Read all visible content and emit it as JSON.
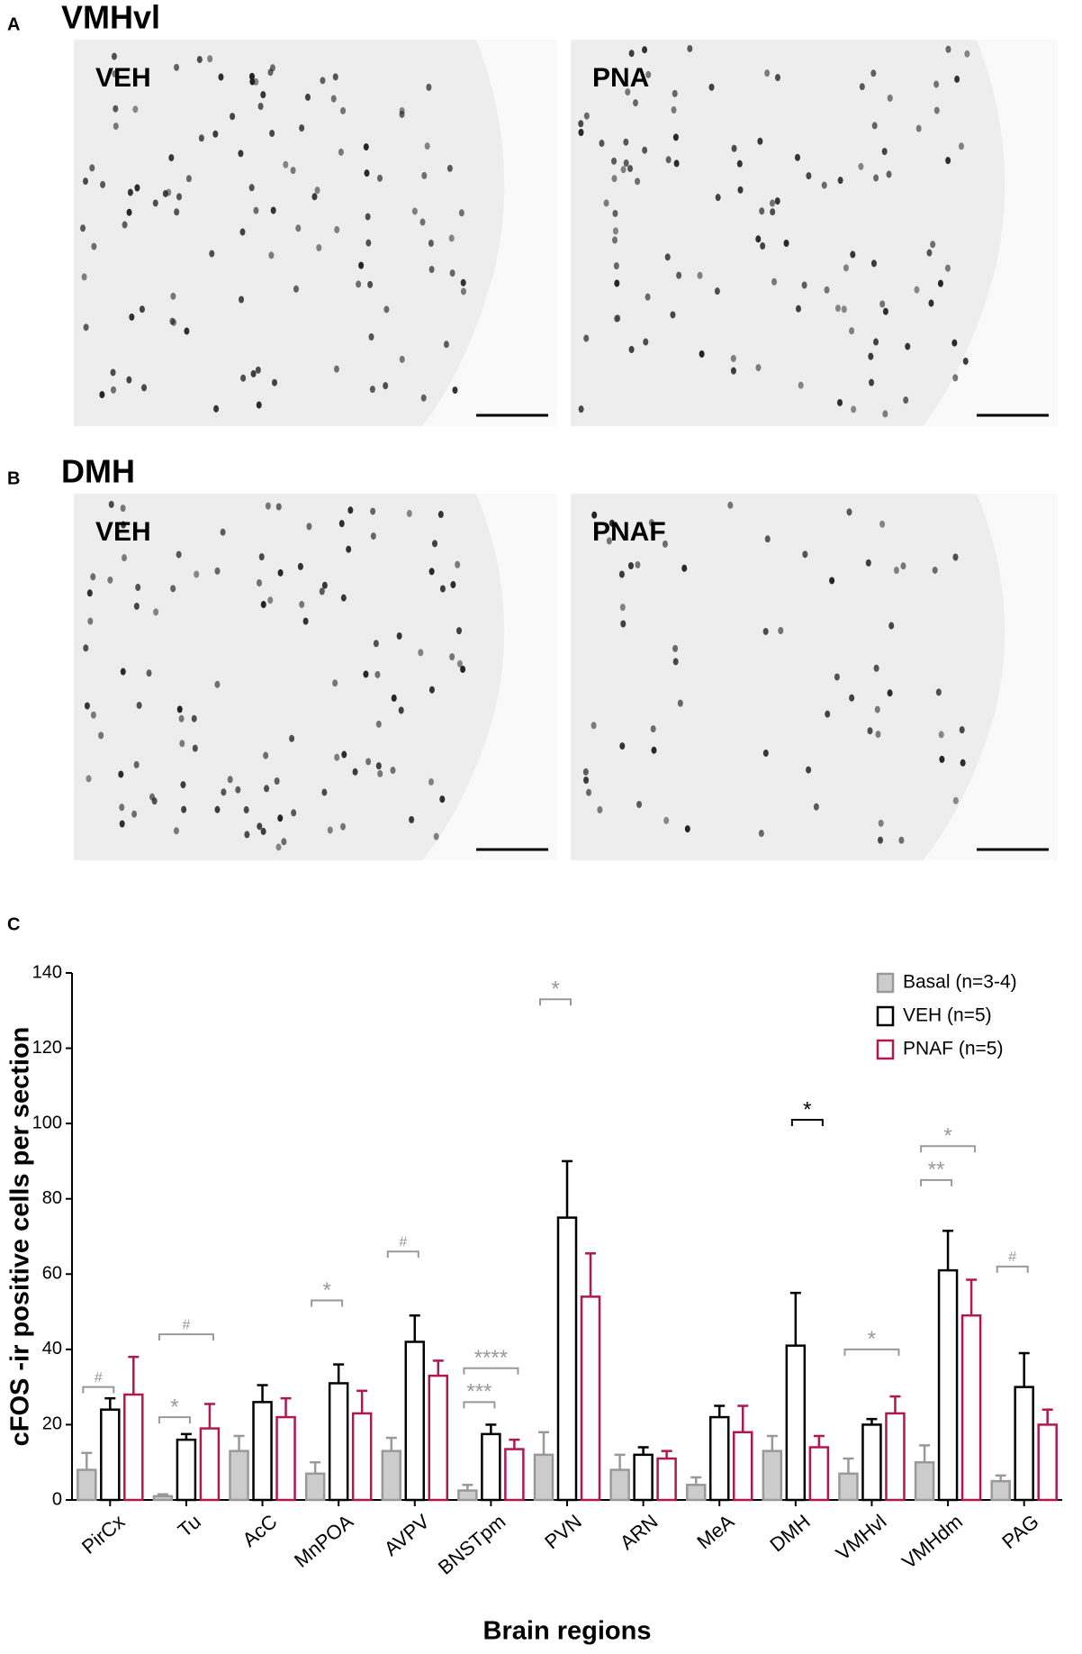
{
  "panels": [
    {
      "letter": "A",
      "title": "VMHvl",
      "images": [
        "VEH",
        "PNA"
      ]
    },
    {
      "letter": "B",
      "title": "DMH",
      "images": [
        "VEH",
        "PNAF"
      ]
    }
  ],
  "panel_c": {
    "letter": "C"
  },
  "chart_data": {
    "type": "bar",
    "y_label": "cFOS -ir positive cells per section",
    "x_label": "Brain regions",
    "categories": [
      "PirCx",
      "Tu",
      "AcC",
      "MnPOA",
      "AVPV",
      "BNSTpm",
      "PVN",
      "ARN",
      "MeA",
      "DMH",
      "VMHvl",
      "VMHdm",
      "PAG"
    ],
    "series": [
      {
        "name": "Basal (n=3-4)",
        "color": "#999999",
        "fill": "#cccccc",
        "values": [
          8,
          1,
          13,
          7,
          13,
          2.5,
          12,
          8,
          4,
          13,
          7,
          10,
          5
        ],
        "errors": [
          4.5,
          0.5,
          4,
          3,
          3.5,
          1.5,
          6,
          4,
          2,
          4,
          4,
          4.5,
          1.5
        ]
      },
      {
        "name": "VEH (n=5)",
        "color": "#000000",
        "fill": "#ffffff",
        "values": [
          24,
          16,
          26,
          31,
          42,
          17.5,
          75,
          12,
          22,
          41,
          20,
          61,
          30
        ],
        "errors": [
          3,
          1.5,
          4.5,
          5,
          7,
          2.5,
          15,
          2,
          3,
          14,
          1.5,
          10.5,
          9
        ]
      },
      {
        "name": "PNAF (n=5)",
        "color": "#b0184f",
        "fill": "#ffffff",
        "values": [
          28,
          19,
          22,
          23,
          33,
          13.5,
          54,
          11,
          18,
          14,
          23,
          49,
          20
        ],
        "errors": [
          10,
          6.5,
          5,
          6,
          4,
          2.5,
          11.5,
          2,
          7,
          3,
          4.5,
          9.5,
          4
        ]
      }
    ],
    "ylim": [
      0,
      140
    ],
    "yticks": [
      0,
      20,
      40,
      60,
      80,
      100,
      120,
      140
    ],
    "legend": "top-right",
    "annotations": [
      {
        "text": "#",
        "category": "PirCx",
        "from": "Basal (n=3-4)",
        "to": "VEH (n=5)",
        "y": 30,
        "color": "#999999"
      },
      {
        "text": "*",
        "category": "Tu",
        "from": "Basal (n=3-4)",
        "to": "VEH (n=5)",
        "y": 22,
        "color": "#999999"
      },
      {
        "text": "#",
        "category": "Tu",
        "from": "Basal (n=3-4)",
        "to": "PNAF (n=5)",
        "y": 44,
        "color": "#999999"
      },
      {
        "text": "*",
        "category": "MnPOA",
        "from": "Basal (n=3-4)",
        "to": "VEH (n=5)",
        "y": 53,
        "color": "#999999"
      },
      {
        "text": "#",
        "category": "AVPV",
        "from": "Basal (n=3-4)",
        "to": "VEH (n=5)",
        "y": 66,
        "color": "#999999"
      },
      {
        "text": "***",
        "category": "BNSTpm",
        "from": "Basal (n=3-4)",
        "to": "VEH (n=5)",
        "y": 26,
        "color": "#999999"
      },
      {
        "text": "****",
        "category": "BNSTpm",
        "from": "Basal (n=3-4)",
        "to": "PNAF (n=5)",
        "y": 35,
        "color": "#999999"
      },
      {
        "text": "*",
        "category": "PVN",
        "from": "Basal (n=3-4)",
        "to": "VEH (n=5)",
        "y": 133,
        "color": "#999999"
      },
      {
        "text": "*",
        "category": "DMH",
        "from": "VEH (n=5)",
        "to": "PNAF (n=5)",
        "y": 101,
        "color": "#000000"
      },
      {
        "text": "*",
        "category": "VMHvl",
        "from": "Basal (n=3-4)",
        "to": "PNAF (n=5)",
        "y": 40,
        "color": "#999999"
      },
      {
        "text": "**",
        "category": "VMHdm",
        "from": "Basal (n=3-4)",
        "to": "VEH (n=5)",
        "y": 85,
        "color": "#999999"
      },
      {
        "text": "*",
        "category": "VMHdm",
        "from": "Basal (n=3-4)",
        "to": "PNAF (n=5)",
        "y": 94,
        "color": "#999999"
      },
      {
        "text": "#",
        "category": "PAG",
        "from": "Basal (n=3-4)",
        "to": "VEH (n=5)",
        "y": 62,
        "color": "#999999"
      }
    ]
  }
}
